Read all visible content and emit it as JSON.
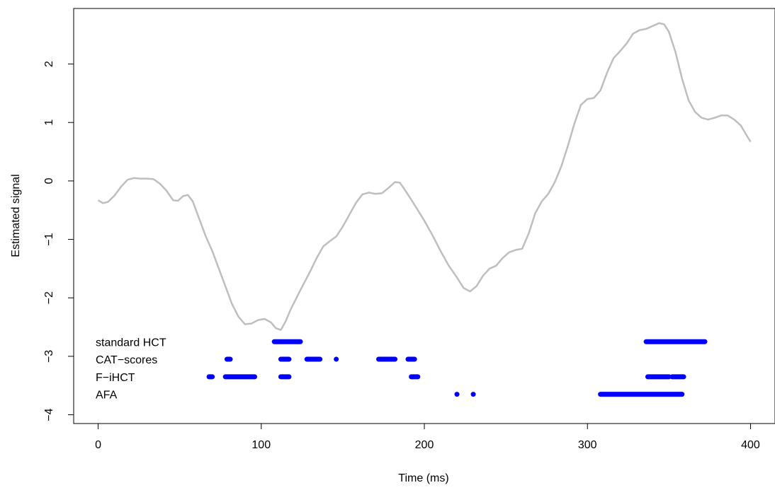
{
  "chart_data": {
    "type": "line",
    "title": "",
    "xlabel": "Time (ms)",
    "ylabel": "Estimated signal",
    "xlim": [
      -15,
      415
    ],
    "ylim": [
      -4.15,
      2.95
    ],
    "x_ticks": [
      0,
      100,
      200,
      300,
      400
    ],
    "y_ticks": [
      -4,
      -3,
      -2,
      -1,
      0,
      1,
      2
    ],
    "grid": false,
    "colors": {
      "curve": "#bebebe",
      "segments": "#0000ff",
      "axis": "#000000"
    },
    "series": [
      {
        "points": [
          [
            0,
            -0.33
          ],
          [
            3,
            -0.38
          ],
          [
            6,
            -0.36
          ],
          [
            10,
            -0.25
          ],
          [
            14,
            -0.1
          ],
          [
            18,
            0.02
          ],
          [
            22,
            0.05
          ],
          [
            26,
            0.04
          ],
          [
            30,
            0.04
          ],
          [
            34,
            0.03
          ],
          [
            38,
            -0.05
          ],
          [
            42,
            -0.17
          ],
          [
            46,
            -0.33
          ],
          [
            49,
            -0.34
          ],
          [
            52,
            -0.26
          ],
          [
            55,
            -0.24
          ],
          [
            58,
            -0.35
          ],
          [
            62,
            -0.65
          ],
          [
            66,
            -0.95
          ],
          [
            70,
            -1.2
          ],
          [
            74,
            -1.5
          ],
          [
            78,
            -1.8
          ],
          [
            82,
            -2.1
          ],
          [
            86,
            -2.32
          ],
          [
            90,
            -2.45
          ],
          [
            94,
            -2.44
          ],
          [
            98,
            -2.38
          ],
          [
            102,
            -2.36
          ],
          [
            106,
            -2.42
          ],
          [
            109,
            -2.52
          ],
          [
            112,
            -2.55
          ],
          [
            115,
            -2.4
          ],
          [
            118,
            -2.2
          ],
          [
            122,
            -1.98
          ],
          [
            126,
            -1.76
          ],
          [
            130,
            -1.55
          ],
          [
            134,
            -1.32
          ],
          [
            138,
            -1.12
          ],
          [
            142,
            -1.03
          ],
          [
            146,
            -0.95
          ],
          [
            150,
            -0.78
          ],
          [
            154,
            -0.58
          ],
          [
            158,
            -0.38
          ],
          [
            162,
            -0.23
          ],
          [
            166,
            -0.2
          ],
          [
            170,
            -0.22
          ],
          [
            174,
            -0.21
          ],
          [
            178,
            -0.12
          ],
          [
            182,
            -0.02
          ],
          [
            185,
            -0.03
          ],
          [
            188,
            -0.15
          ],
          [
            192,
            -0.32
          ],
          [
            196,
            -0.5
          ],
          [
            200,
            -0.68
          ],
          [
            205,
            -0.93
          ],
          [
            210,
            -1.2
          ],
          [
            215,
            -1.45
          ],
          [
            220,
            -1.65
          ],
          [
            224,
            -1.83
          ],
          [
            228,
            -1.89
          ],
          [
            232,
            -1.8
          ],
          [
            236,
            -1.62
          ],
          [
            240,
            -1.5
          ],
          [
            244,
            -1.45
          ],
          [
            248,
            -1.32
          ],
          [
            252,
            -1.22
          ],
          [
            256,
            -1.18
          ],
          [
            260,
            -1.16
          ],
          [
            264,
            -0.9
          ],
          [
            268,
            -0.55
          ],
          [
            272,
            -0.35
          ],
          [
            276,
            -0.22
          ],
          [
            280,
            -0.02
          ],
          [
            284,
            0.25
          ],
          [
            288,
            0.6
          ],
          [
            292,
            0.98
          ],
          [
            296,
            1.3
          ],
          [
            300,
            1.4
          ],
          [
            304,
            1.42
          ],
          [
            308,
            1.55
          ],
          [
            312,
            1.85
          ],
          [
            316,
            2.1
          ],
          [
            320,
            2.22
          ],
          [
            324,
            2.35
          ],
          [
            328,
            2.52
          ],
          [
            332,
            2.58
          ],
          [
            336,
            2.6
          ],
          [
            340,
            2.65
          ],
          [
            344,
            2.7
          ],
          [
            347,
            2.68
          ],
          [
            350,
            2.55
          ],
          [
            354,
            2.2
          ],
          [
            358,
            1.75
          ],
          [
            362,
            1.38
          ],
          [
            366,
            1.18
          ],
          [
            370,
            1.08
          ],
          [
            374,
            1.05
          ],
          [
            378,
            1.08
          ],
          [
            382,
            1.12
          ],
          [
            386,
            1.12
          ],
          [
            390,
            1.05
          ],
          [
            394,
            0.95
          ],
          [
            398,
            0.76
          ],
          [
            400,
            0.67
          ]
        ]
      }
    ],
    "segment_rows": [
      {
        "label": "standard HCT",
        "y": -2.75,
        "segments": [
          [
            108,
            124
          ],
          [
            336,
            372
          ]
        ]
      },
      {
        "label": "CAT−scores",
        "y": -3.05,
        "segments": [
          [
            79,
            81
          ],
          [
            112,
            117
          ],
          [
            128,
            136
          ],
          [
            146,
            146
          ],
          [
            172,
            182
          ],
          [
            190,
            194
          ]
        ]
      },
      {
        "label": "F−iHCT",
        "y": -3.35,
        "segments": [
          [
            68,
            70
          ],
          [
            78,
            96
          ],
          [
            112,
            117
          ],
          [
            192,
            196
          ],
          [
            337,
            350
          ],
          [
            352,
            359
          ]
        ]
      },
      {
        "label": "AFA",
        "y": -3.65,
        "segments": [
          [
            220,
            220
          ],
          [
            230,
            230
          ],
          [
            308,
            358
          ]
        ]
      }
    ]
  }
}
